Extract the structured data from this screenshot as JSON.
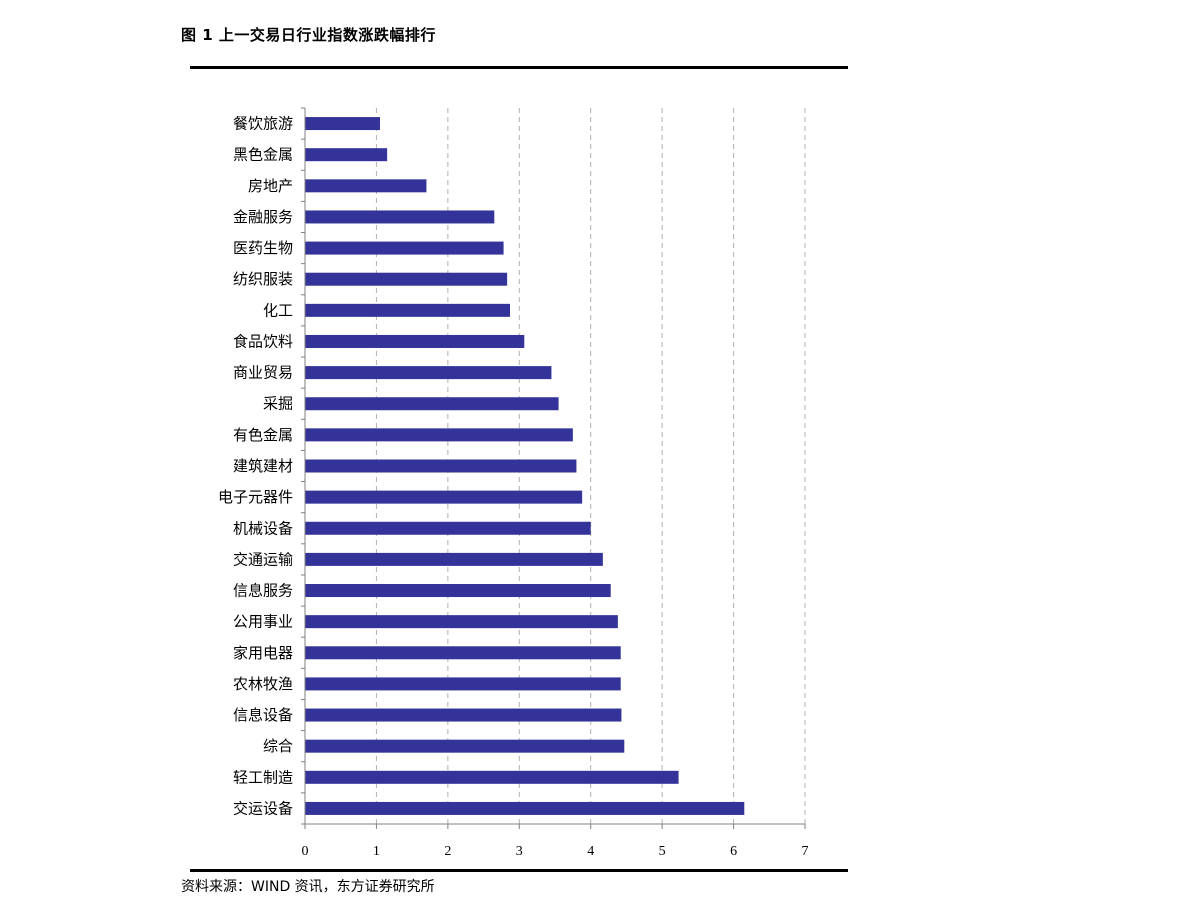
{
  "title": "图 1  上一交易日行业指数涨跌幅排行",
  "source": "资料来源：WIND 资讯，东方证券研究所",
  "colors": {
    "bar": "#333399",
    "grid": "#b0b0b0",
    "axis": "#808080",
    "rule": "#000000"
  },
  "chart_data": {
    "type": "bar",
    "orientation": "horizontal",
    "categories": [
      "餐饮旅游",
      "黑色金属",
      "房地产",
      "金融服务",
      "医药生物",
      "纺织服装",
      "化工",
      "食品饮料",
      "商业贸易",
      "采掘",
      "有色金属",
      "建筑建材",
      "电子元器件",
      "机械设备",
      "交通运输",
      "信息服务",
      "公用事业",
      "家用电器",
      "农林牧渔",
      "信息设备",
      "综合",
      "轻工制造",
      "交运设备"
    ],
    "values": [
      1.05,
      1.15,
      1.7,
      2.65,
      2.78,
      2.83,
      2.87,
      3.07,
      3.45,
      3.55,
      3.75,
      3.8,
      3.88,
      4.0,
      4.17,
      4.28,
      4.38,
      4.42,
      4.42,
      4.43,
      4.47,
      5.23,
      6.15
    ],
    "xlim": [
      0,
      7
    ],
    "xticks": [
      "0",
      "1",
      "2",
      "3",
      "4",
      "5",
      "6",
      "7"
    ],
    "grid": "vertical-dashed",
    "legend": "none",
    "title": "",
    "xlabel": "",
    "ylabel": ""
  }
}
